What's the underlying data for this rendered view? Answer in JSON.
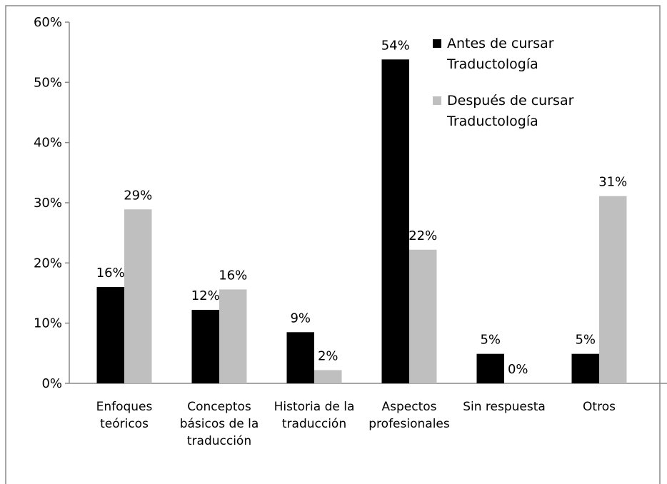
{
  "chart_data": {
    "type": "bar",
    "categories": [
      "Enfoques teóricos",
      "Conceptos básicos de la traducción",
      "Historia de la traducción",
      "Aspectos profesionales",
      "Sin respuesta",
      "Otros"
    ],
    "series": [
      {
        "name": "Antes de cursar Traductología",
        "color": "#000000",
        "values": [
          16,
          12.2,
          8.5,
          53.8,
          4.9,
          4.9
        ],
        "value_labels": [
          "16%",
          "12%",
          "9%",
          "54%",
          "5%",
          "5%"
        ]
      },
      {
        "name": "Después de cursar Traductología",
        "color": "#bfbfbf",
        "values": [
          28.9,
          15.6,
          2.2,
          22.2,
          0,
          31.1
        ],
        "value_labels": [
          "29%",
          "16%",
          "2%",
          "22%",
          "0%",
          "31%"
        ]
      }
    ],
    "ylim": [
      0,
      60
    ],
    "yticks": [
      {
        "value": 0,
        "label": "0%"
      },
      {
        "value": 10,
        "label": "10%"
      },
      {
        "value": 20,
        "label": "20%"
      },
      {
        "value": 30,
        "label": "30%"
      },
      {
        "value": 40,
        "label": "40%"
      },
      {
        "value": 50,
        "label": "50%"
      },
      {
        "value": 60,
        "label": "60%"
      }
    ],
    "legend": "top-right"
  }
}
